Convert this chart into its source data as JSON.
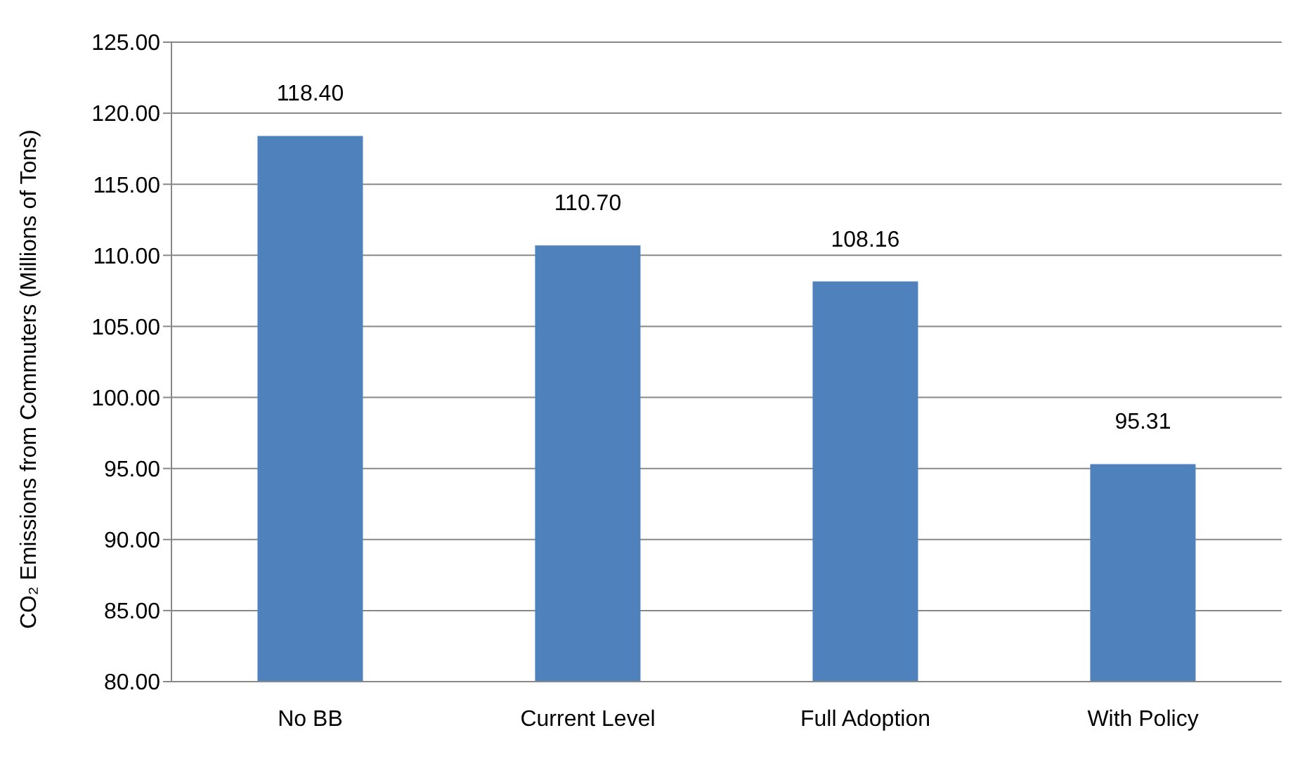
{
  "chart_data": {
    "type": "bar",
    "ylabel": "CO₂ Emissions from Commuters (Millions of Tons)",
    "categories": [
      "No BB",
      "Current Level",
      "Full Adoption",
      "With Policy"
    ],
    "values": [
      118.4,
      110.7,
      108.16,
      95.31
    ],
    "value_labels": [
      "118.40",
      "110.70",
      "108.16",
      "95.31"
    ],
    "color": "#4f81bd",
    "ylim": [
      80,
      125
    ],
    "yticks": [
      {
        "value": 80,
        "label": "80.00"
      },
      {
        "value": 85,
        "label": "85.00"
      },
      {
        "value": 90,
        "label": "90.00"
      },
      {
        "value": 95,
        "label": "95.00"
      },
      {
        "value": 100,
        "label": "100.00"
      },
      {
        "value": 105,
        "label": "105.00"
      },
      {
        "value": 110,
        "label": "110.00"
      },
      {
        "value": 115,
        "label": "115.00"
      },
      {
        "value": 120,
        "label": "120.00"
      },
      {
        "value": 125,
        "label": "125.00"
      }
    ],
    "grid": "y"
  }
}
